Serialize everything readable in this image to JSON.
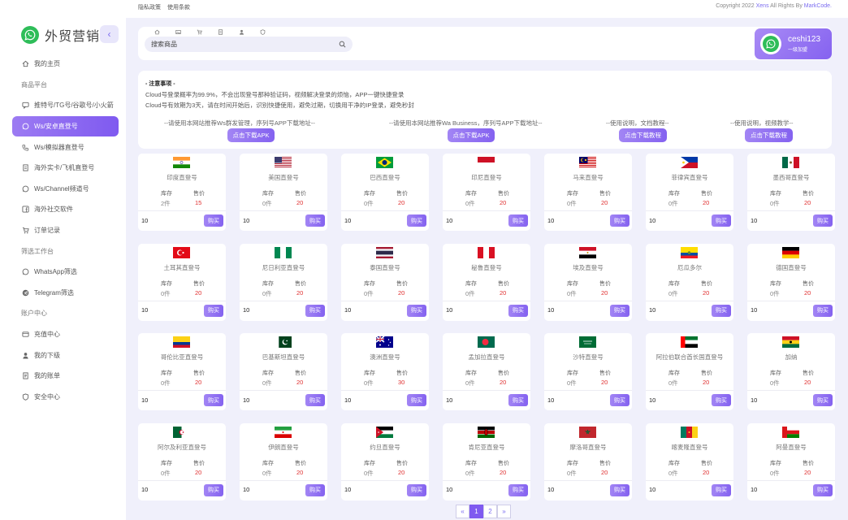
{
  "brand": {
    "name": "外贸营销",
    "collapse": "‹"
  },
  "sidebar": {
    "items": [
      {
        "type": "item",
        "label": "我的主页",
        "icon": "home-icon"
      },
      {
        "type": "section",
        "label": "商品平台"
      },
      {
        "type": "item",
        "label": "推特号/TG号/谷歌号/小火箭",
        "icon": "message-icon"
      },
      {
        "type": "item",
        "label": "Ws/安卓直登号",
        "icon": "whatsapp-icon",
        "active": true
      },
      {
        "type": "item",
        "label": "Ws/模拟器直登号",
        "icon": "phone-icon"
      },
      {
        "type": "item",
        "label": "海外实卡/飞机直登号",
        "icon": "document-icon"
      },
      {
        "type": "item",
        "label": "Ws/Channel频道号",
        "icon": "whatsapp-icon"
      },
      {
        "type": "item",
        "label": "海外社交软件",
        "icon": "facebook-icon"
      },
      {
        "type": "item",
        "label": "订单记录",
        "icon": "cart-icon"
      },
      {
        "type": "section",
        "label": "筛选工作台"
      },
      {
        "type": "item",
        "label": "WhatsApp筛选",
        "icon": "whatsapp-icon"
      },
      {
        "type": "item",
        "label": "Telegram筛选",
        "icon": "telegram-icon"
      },
      {
        "type": "section",
        "label": "账户中心"
      },
      {
        "type": "item",
        "label": "充值中心",
        "icon": "wallet-icon"
      },
      {
        "type": "item",
        "label": "我的下级",
        "icon": "user-icon"
      },
      {
        "type": "item",
        "label": "我的账单",
        "icon": "bill-icon"
      },
      {
        "type": "item",
        "label": "安全中心",
        "icon": "shield-icon"
      }
    ]
  },
  "topbar": {
    "links": [
      "隐私政策",
      "使用条款"
    ],
    "copyright_prefix": "Copyright 2022 ",
    "copyright_brand": "Xens",
    "copyright_mid": " All Rights By ",
    "copyright_author": "MarkCode."
  },
  "search": {
    "placeholder": "搜索商品"
  },
  "user": {
    "name": "ceshi123",
    "sub": "一级加盟"
  },
  "notice": {
    "title": "- 注意事项 -",
    "line1": "Cloud号登录概率为99.9%，不会出现登号那种验证码，视频解决登录的烦恼，APP一键快捷登录",
    "line2": "Cloud号有效期为3天，请在时间开始后，识别快捷使用，避免过期，切换用干净的IP登录，避免秒封",
    "downloads": [
      {
        "text": "--请使用本网站推荐Ws群发管理，序列号APP下载地址--",
        "button": "点击下载APK"
      },
      {
        "text": "--请使用本网站推荐Wa Business，序列号APP下载地址--",
        "button": "点击下载APK"
      },
      {
        "text": "--使用说明，文档教程--",
        "button": "点击下载教程"
      },
      {
        "text": "--使用说明，视频教学--",
        "button": "点击下载教程"
      }
    ]
  },
  "card_labels": {
    "stock": "库存",
    "price": "售价",
    "buy": "购买",
    "qty": "10"
  },
  "products": [
    {
      "name": "印度直登号",
      "stock": "2件",
      "price": "15",
      "flag": "india"
    },
    {
      "name": "美国直登号",
      "stock": "0件",
      "price": "20",
      "flag": "usa"
    },
    {
      "name": "巴西直登号",
      "stock": "0件",
      "price": "20",
      "flag": "brazil"
    },
    {
      "name": "印尼直登号",
      "stock": "0件",
      "price": "20",
      "flag": "indonesia"
    },
    {
      "name": "马来直登号",
      "stock": "0件",
      "price": "20",
      "flag": "malaysia"
    },
    {
      "name": "菲律宾直登号",
      "stock": "0件",
      "price": "20",
      "flag": "philippines"
    },
    {
      "name": "墨西哥直登号",
      "stock": "0件",
      "price": "20",
      "flag": "mexico"
    },
    {
      "name": "土耳其直登号",
      "stock": "0件",
      "price": "20",
      "flag": "turkey"
    },
    {
      "name": "尼日利亚直登号",
      "stock": "0件",
      "price": "20",
      "flag": "nigeria"
    },
    {
      "name": "泰国直登号",
      "stock": "0件",
      "price": "20",
      "flag": "thailand"
    },
    {
      "name": "秘鲁直登号",
      "stock": "0件",
      "price": "20",
      "flag": "peru"
    },
    {
      "name": "埃及直登号",
      "stock": "0件",
      "price": "20",
      "flag": "egypt"
    },
    {
      "name": "厄瓜多尔",
      "stock": "0件",
      "price": "20",
      "flag": "ecuador"
    },
    {
      "name": "德国直登号",
      "stock": "0件",
      "price": "20",
      "flag": "germany"
    },
    {
      "name": "哥伦比亚直登号",
      "stock": "0件",
      "price": "20",
      "flag": "colombia"
    },
    {
      "name": "巴基斯坦直登号",
      "stock": "0件",
      "price": "20",
      "flag": "pakistan"
    },
    {
      "name": "澳洲直登号",
      "stock": "0件",
      "price": "30",
      "flag": "australia"
    },
    {
      "name": "孟加拉直登号",
      "stock": "0件",
      "price": "20",
      "flag": "bangladesh"
    },
    {
      "name": "沙特直登号",
      "stock": "0件",
      "price": "20",
      "flag": "saudi"
    },
    {
      "name": "阿拉伯联合酋长国直登号",
      "stock": "0件",
      "price": "20",
      "flag": "uae"
    },
    {
      "name": "加纳",
      "stock": "0件",
      "price": "20",
      "flag": "ghana"
    },
    {
      "name": "阿尔及利亚直登号",
      "stock": "0件",
      "price": "20",
      "flag": "algeria"
    },
    {
      "name": "伊朗直登号",
      "stock": "0件",
      "price": "20",
      "flag": "iran"
    },
    {
      "name": "约旦直登号",
      "stock": "0件",
      "price": "20",
      "flag": "jordan"
    },
    {
      "name": "肯尼亚直登号",
      "stock": "0件",
      "price": "20",
      "flag": "kenya"
    },
    {
      "name": "摩洛哥直登号",
      "stock": "0件",
      "price": "20",
      "flag": "morocco"
    },
    {
      "name": "喀麦隆直登号",
      "stock": "0件",
      "price": "20",
      "flag": "cameroon"
    },
    {
      "name": "阿曼直登号",
      "stock": "0件",
      "price": "20",
      "flag": "oman"
    }
  ],
  "pagination": {
    "prev": "«",
    "pages": [
      "1",
      "2"
    ],
    "next": "»",
    "current": "1"
  },
  "colors": {
    "accent": "#7f5af0",
    "price": "#e03131",
    "whatsapp": "#2ebd59"
  }
}
